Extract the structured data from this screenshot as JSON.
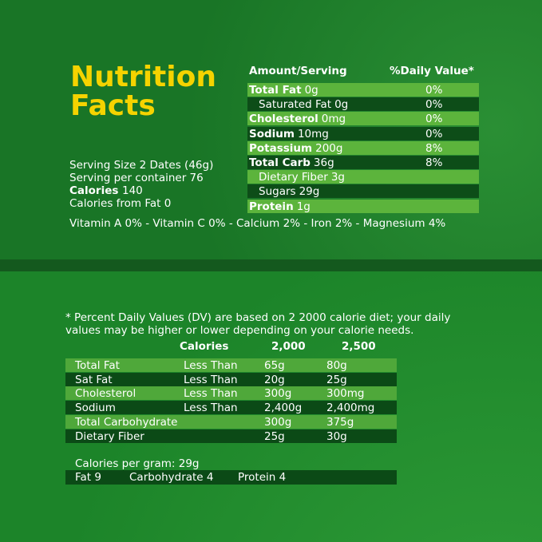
{
  "header": {
    "title_line1": "Nutrition",
    "title_line2": "Facts"
  },
  "serving": {
    "size": "Serving Size 2 Dates (46g)",
    "per_container": "Serving per container 76",
    "calories_label": "Calories",
    "calories_value": "140",
    "calories_from_fat": "Calories from Fat 0"
  },
  "facts_table": {
    "headers": [
      "Amount/Serving",
      "%Daily Value*"
    ],
    "rows": [
      {
        "label": "Total Fat",
        "amount": "0g",
        "dv": "0%",
        "bold": true
      },
      {
        "label": "Saturated Fat",
        "amount": "0g",
        "dv": "0%",
        "bold": false
      },
      {
        "label": "Cholesterol",
        "amount": "0mg",
        "dv": "0%",
        "bold": true
      },
      {
        "label": "Sodium",
        "amount": "10mg",
        "dv": "0%",
        "bold": true
      },
      {
        "label": "Potassium",
        "amount": "200g",
        "dv": "8%",
        "bold": true
      },
      {
        "label": "Total Carb",
        "amount": "36g",
        "dv": "8%",
        "bold": true
      },
      {
        "label": "Dietary Fiber",
        "amount": "3g",
        "dv": null,
        "bold": false
      },
      {
        "label": "Sugars",
        "amount": "29g",
        "dv": null,
        "bold": false
      },
      {
        "label": "Protein",
        "amount": "1g",
        "dv": null,
        "bold": true
      }
    ]
  },
  "vitamins": "Vitamin A 0% - Vitamin C 0% - Calcium 2% - Iron 2% - Magnesium 4%",
  "footnote": {
    "line1": "* Percent Daily Values (DV) are based on 2 2000 calorie diet; your daily",
    "line2": "values may be higher or lower depending on your calorie needs."
  },
  "dv_table": {
    "headers": [
      "Calories",
      "2,000",
      "2,500"
    ],
    "rows": [
      [
        "Total Fat",
        "Less Than",
        "65g",
        "80g"
      ],
      [
        "Sat Fat",
        "Less Than",
        "20g",
        "25g"
      ],
      [
        "Cholesterol",
        "Less Than",
        "300g",
        "300mg"
      ],
      [
        "Sodium",
        "Less Than",
        "2,400g",
        "2,400mg"
      ],
      [
        "Total Carbohydrate",
        null,
        "300g",
        "375g"
      ],
      [
        "Dietary Fiber",
        null,
        "25g",
        "30g"
      ]
    ]
  },
  "calories_per_gram": {
    "title": "Calories per gram: 29g",
    "items": [
      "Fat 9",
      "Carbohydrate 4",
      "Protein 4"
    ]
  }
}
